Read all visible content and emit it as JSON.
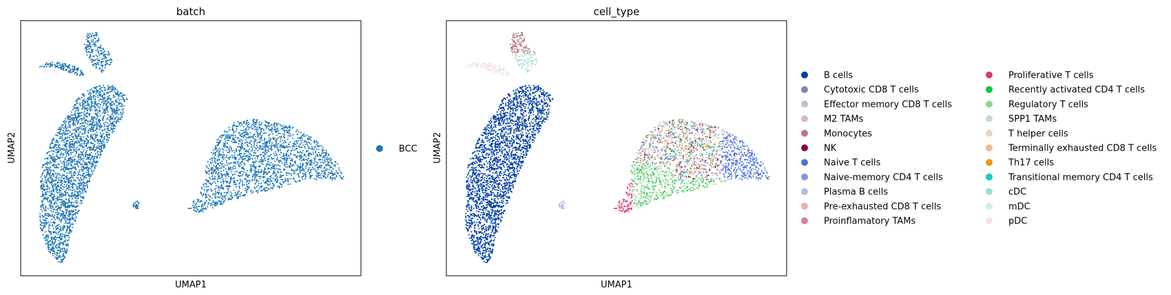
{
  "chart_data": [
    {
      "type": "scatter",
      "title": "batch",
      "xlabel": "UMAP1",
      "ylabel": "UMAP2",
      "ticks": "none",
      "grid": false,
      "legend_position": "right",
      "legend": [
        {
          "name": "BCC",
          "color": "#1f77b4"
        }
      ]
    },
    {
      "type": "scatter",
      "title": "cell_type",
      "xlabel": "UMAP1",
      "ylabel": "UMAP2",
      "ticks": "none",
      "grid": false,
      "legend_position": "right",
      "legend": [
        {
          "name": "B cells",
          "color": "#023fa5"
        },
        {
          "name": "Cytotoxic CD8 T cells",
          "color": "#7d87b9"
        },
        {
          "name": "Effector memory CD8 T cells",
          "color": "#bec1d4"
        },
        {
          "name": "M2 TAMs",
          "color": "#d6bcc0"
        },
        {
          "name": "Monocytes",
          "color": "#bb7784"
        },
        {
          "name": "NK",
          "color": "#8e063b"
        },
        {
          "name": "Naive T cells",
          "color": "#4a6fe3"
        },
        {
          "name": "Naive-memory CD4 T cells",
          "color": "#8595e1"
        },
        {
          "name": "Plasma B cells",
          "color": "#b5bbe3"
        },
        {
          "name": "Pre-exhausted CD8 T cells",
          "color": "#e6afb9"
        },
        {
          "name": "Proinflamatory TAMs",
          "color": "#e07b91"
        },
        {
          "name": "Proliferative T cells",
          "color": "#d33f6a"
        },
        {
          "name": "Recently activated CD4 T cells",
          "color": "#11c638"
        },
        {
          "name": "Regulatory T cells",
          "color": "#8dd593"
        },
        {
          "name": "SPP1 TAMs",
          "color": "#c6dec7"
        },
        {
          "name": "T helper cells",
          "color": "#ead3c6"
        },
        {
          "name": "Terminally exhausted CD8 T cells",
          "color": "#f0b98d"
        },
        {
          "name": "Th17 cells",
          "color": "#ef9708"
        },
        {
          "name": "Transitional memory CD4 T cells",
          "color": "#0fcfc0"
        },
        {
          "name": "cDC",
          "color": "#9cded6"
        },
        {
          "name": "mDC",
          "color": "#d5eae7"
        },
        {
          "name": "pDC",
          "color": "#f3e1eb"
        }
      ]
    }
  ]
}
